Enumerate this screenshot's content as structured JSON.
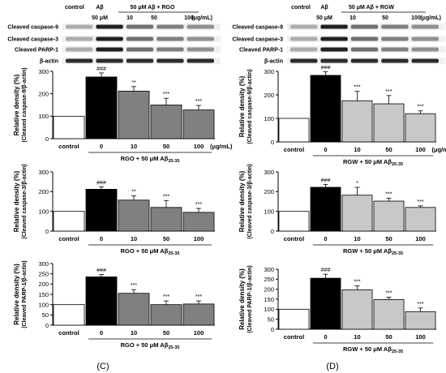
{
  "panels": [
    {
      "label": "(C)",
      "blot": {
        "header_control": "control",
        "header_abeta": "Aβ",
        "header_abeta_dose": "50 μM",
        "header_treat": "50 μM  Aβ  + RGO",
        "doses": [
          "10",
          "50",
          "100"
        ],
        "unit": "(μg/mL)",
        "rows": [
          "Cleaved caspase-9",
          "Cleaved caspase-3",
          "Cleaved PARP-1",
          "β-actin"
        ]
      }
    },
    {
      "label": "(D)",
      "blot": {
        "header_control": "control",
        "header_abeta": "Aβ",
        "header_abeta_dose": "50 μM",
        "header_treat": "50 μM  Aβ  + RGW",
        "doses": [
          "10",
          "50",
          "100"
        ],
        "unit": "(μg/mL)",
        "rows": [
          "Cleaved caspase-9",
          "Cleaved caspase-3",
          "Cleaved PARP-1",
          "β-actin"
        ]
      }
    }
  ],
  "colors": {
    "control_bar": "#ffffff",
    "abeta_bar": "#000000",
    "rgo_bar": "#808080",
    "rgw_bar": "#c8c8c8"
  },
  "chart_data": [
    {
      "id": "C1",
      "type": "bar",
      "ylabel_line1": "Relative density (%)",
      "ylabel_line2": "(Cleaved caspase-9/β-actin)",
      "ylim": [
        0,
        300
      ],
      "yticks": [
        "0",
        "100",
        "200",
        "300"
      ],
      "categories": [
        "control",
        "0",
        "10",
        "50",
        "100"
      ],
      "unit_label": "(μg/mL)",
      "xlabel": "RGO + 50 μM Aβ",
      "xlabel_sub": "25-35",
      "values": [
        100,
        275,
        212,
        150,
        128
      ],
      "errors": [
        0,
        18,
        20,
        30,
        20
      ],
      "annotations": [
        "",
        "###",
        "**",
        "***",
        "***"
      ]
    },
    {
      "id": "C2",
      "type": "bar",
      "ylabel_line1": "Relative density (%)",
      "ylabel_line2": "(Cleaved caspase-3/β-actin)",
      "ylim": [
        0,
        300
      ],
      "yticks": [
        "0",
        "100",
        "200",
        "300"
      ],
      "categories": [
        "control",
        "0",
        "10",
        "50",
        "100"
      ],
      "unit_label": "",
      "xlabel": "RGO + 50 μM Aβ",
      "xlabel_sub": "25-35",
      "values": [
        100,
        212,
        157,
        120,
        95
      ],
      "errors": [
        0,
        12,
        22,
        35,
        20
      ],
      "annotations": [
        "",
        "###",
        "**",
        "***",
        "***"
      ]
    },
    {
      "id": "C3",
      "type": "bar",
      "ylabel_line1": "Relative density (%)",
      "ylabel_line2": "(Cleaved PARP-1/β-actin)",
      "ylim": [
        0,
        300
      ],
      "yticks": [
        "0",
        "50",
        "100",
        "150",
        "200",
        "250",
        "300"
      ],
      "categories": [
        "control",
        "0",
        "10",
        "50",
        "100"
      ],
      "unit_label": "",
      "xlabel": "RGO + 50 μM Aβ",
      "xlabel_sub": "25-35",
      "values": [
        100,
        235,
        155,
        100,
        103
      ],
      "errors": [
        0,
        12,
        18,
        18,
        15
      ],
      "annotations": [
        "",
        "###",
        "***",
        "***",
        "***"
      ]
    },
    {
      "id": "D1",
      "type": "bar",
      "ylabel_line1": "Relative density (%)",
      "ylabel_line2": "(Cleaved caspase-9/β-actin)",
      "ylim": [
        0,
        300
      ],
      "yticks": [
        "0",
        "100",
        "200",
        "300"
      ],
      "categories": [
        "control",
        "0",
        "10",
        "50",
        "100"
      ],
      "unit_label": "(μg/mL)",
      "xlabel": "RGW + 50 μM Aβ",
      "xlabel_sub": "25-35",
      "values": [
        100,
        283,
        175,
        162,
        120
      ],
      "errors": [
        0,
        15,
        40,
        35,
        12
      ],
      "annotations": [
        "",
        "###",
        "***",
        "***",
        "***"
      ]
    },
    {
      "id": "D2",
      "type": "bar",
      "ylabel_line1": "Relative density (%)",
      "ylabel_line2": "(Cleaved caspase-3/β-actin)",
      "ylim": [
        0,
        300
      ],
      "yticks": [
        "0",
        "100",
        "200",
        "300"
      ],
      "categories": [
        "control",
        "0",
        "10",
        "50",
        "100"
      ],
      "unit_label": "",
      "xlabel": "RGW + 50 μM Aβ",
      "xlabel_sub": "25-35",
      "values": [
        100,
        222,
        182,
        152,
        120
      ],
      "errors": [
        0,
        15,
        40,
        15,
        8
      ],
      "annotations": [
        "",
        "###",
        "*",
        "***",
        "***"
      ]
    },
    {
      "id": "D3",
      "type": "bar",
      "ylabel_line1": "Relative density (%)",
      "ylabel_line2": "(Cleaved PARP-1/β-actin)",
      "ylim": [
        0,
        300
      ],
      "yticks": [
        "0",
        "50",
        "100",
        "150",
        "200",
        "250",
        "300"
      ],
      "categories": [
        "control",
        "0",
        "10",
        "50",
        "100"
      ],
      "unit_label": "",
      "xlabel": "RGW + 50 μM Aβ",
      "xlabel_sub": "25-35",
      "values": [
        100,
        255,
        197,
        148,
        88
      ],
      "errors": [
        0,
        20,
        20,
        12,
        18
      ],
      "annotations": [
        "",
        "###",
        "***",
        "***",
        "***"
      ]
    }
  ]
}
